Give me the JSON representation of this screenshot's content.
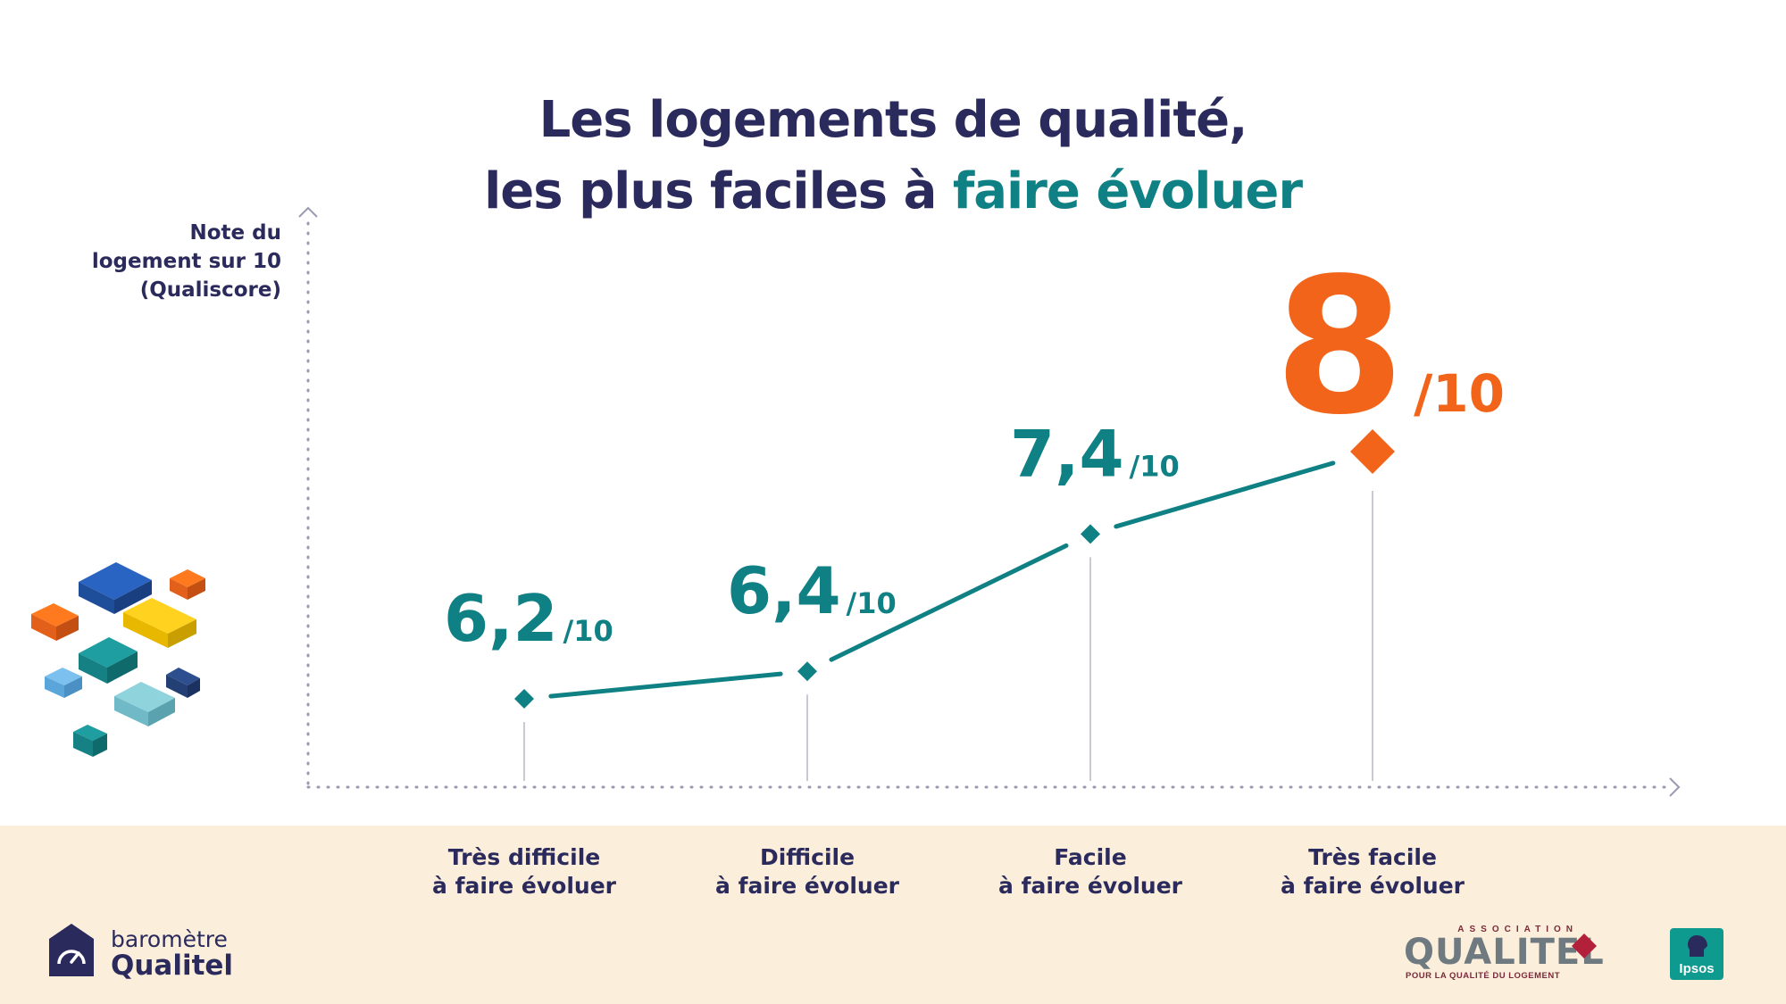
{
  "title": {
    "line1": "Les logements de qualité,",
    "line2_prefix": "les plus faciles à ",
    "line2_accent": "faire évoluer"
  },
  "y_axis_label": [
    "Note du",
    "logement sur 10",
    "(Qualiscore)"
  ],
  "colors": {
    "navy": "#2b2a5c",
    "teal": "#0f8083",
    "orange": "#f26419",
    "footer_bg": "#fbeedb"
  },
  "chart_data": {
    "type": "line",
    "categories": [
      [
        "Très difficile",
        "à faire évoluer"
      ],
      [
        "Difficile",
        "à faire évoluer"
      ],
      [
        "Facile",
        "à faire évoluer"
      ],
      [
        "Très facile",
        "à faire évoluer"
      ]
    ],
    "values": [
      6.2,
      6.4,
      7.4,
      8.0
    ],
    "value_labels": [
      "6,2",
      "6,4",
      "7,4",
      "8"
    ],
    "unit_label": "/10",
    "ylabel": "Note du logement sur 10 (Qualiscore)",
    "highlight_index": 3,
    "grid": false
  },
  "brand": {
    "barometre": {
      "line1": "baromètre",
      "line2": "Qualitel"
    },
    "association": {
      "small": "ASSOCIATION",
      "name": "QUALITEL",
      "tagline": "POUR LA QUALITÉ DU LOGEMENT"
    },
    "ipsos": "Ipsos"
  }
}
